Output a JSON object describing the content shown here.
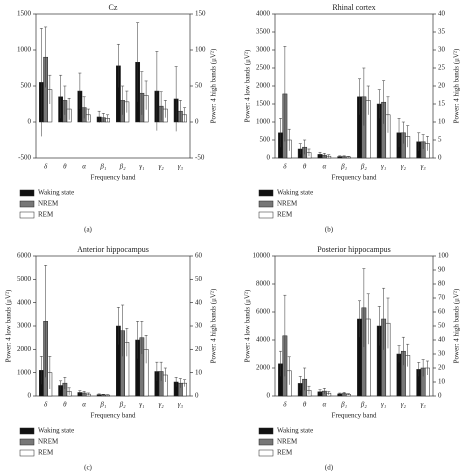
{
  "chart_data": [
    {
      "type": "bar",
      "title": "Cz",
      "caption": "(a)",
      "xlabel": "Frequency band",
      "y2label": "Power: 4 high bands (μV²)",
      "categories": [
        "δ",
        "θ",
        "α",
        "β₁",
        "β₂",
        "γ₁",
        "γ₂",
        "γ₃"
      ],
      "category_axis": [
        "y",
        "y",
        "y",
        "y",
        "y2",
        "y2",
        "y2",
        "y2"
      ],
      "ylim": [
        -500,
        1500
      ],
      "yticks": [
        -500,
        0,
        500,
        1000,
        1500
      ],
      "y2lim": [
        -50,
        150
      ],
      "y2ticks": [
        -50,
        0,
        50,
        100,
        150
      ],
      "series": [
        {
          "name": "Waking state",
          "color": "#111111",
          "values": [
            550,
            350,
            430,
            70,
            78,
            83,
            43,
            32
          ],
          "errors": [
            750,
            300,
            250,
            80,
            30,
            55,
            55,
            45
          ]
        },
        {
          "name": "NREM",
          "color": "#777777",
          "values": [
            900,
            300,
            200,
            60,
            30,
            40,
            22,
            15
          ],
          "errors": [
            420,
            200,
            150,
            60,
            20,
            30,
            20,
            15
          ]
        },
        {
          "name": "REM",
          "color": "#ffffff",
          "values": [
            450,
            180,
            100,
            50,
            28,
            37,
            18,
            10
          ],
          "errors": [
            200,
            150,
            80,
            50,
            15,
            20,
            12,
            10
          ]
        }
      ]
    },
    {
      "type": "bar",
      "title": "Rhinal cortex",
      "caption": "(b)",
      "xlabel": "Frequency band",
      "ylabel": "Power: 4 low bands (μV²)",
      "y2label": "Power: 4 high bands (μV²)",
      "categories": [
        "δ",
        "θ",
        "α",
        "β₁",
        "β₂",
        "γ₁",
        "γ₂",
        "γ₃"
      ],
      "category_axis": [
        "y",
        "y",
        "y",
        "y",
        "y2",
        "y2",
        "y2",
        "y2"
      ],
      "ylim": [
        0,
        4000
      ],
      "yticks": [
        0,
        500,
        1000,
        1500,
        2000,
        2500,
        3000,
        3500,
        4000
      ],
      "y2lim": [
        0,
        40
      ],
      "y2ticks": [
        0,
        5,
        10,
        15,
        20,
        25,
        30,
        35,
        40
      ],
      "series": [
        {
          "name": "Waking state",
          "color": "#111111",
          "values": [
            700,
            250,
            100,
            40,
            17,
            15,
            7,
            4.5
          ],
          "errors": [
            400,
            150,
            60,
            20,
            5,
            4,
            4,
            2.5
          ]
        },
        {
          "name": "NREM",
          "color": "#777777",
          "values": [
            1780,
            300,
            80,
            40,
            17,
            15.5,
            7,
            4.5
          ],
          "errors": [
            1320,
            200,
            50,
            20,
            8,
            6,
            3,
            2
          ]
        },
        {
          "name": "REM",
          "color": "#ffffff",
          "values": [
            500,
            150,
            50,
            30,
            16,
            12,
            6,
            4
          ],
          "errors": [
            300,
            100,
            40,
            15,
            4,
            5,
            3,
            2
          ]
        }
      ]
    },
    {
      "type": "bar",
      "title": "Anterior hippocampus",
      "caption": "(c)",
      "xlabel": "Frequency band",
      "ylabel": "Power: 4 low bands (μV²)",
      "y2label": "Power: 4 high bands (μV²)",
      "categories": [
        "δ",
        "θ",
        "α",
        "β₁",
        "β₂",
        "γ₁",
        "γ₂",
        "γ₃"
      ],
      "category_axis": [
        "y",
        "y",
        "y",
        "y",
        "y2",
        "y2",
        "y2",
        "y2"
      ],
      "ylim": [
        0,
        6000
      ],
      "yticks": [
        0,
        1000,
        2000,
        3000,
        4000,
        5000,
        6000
      ],
      "y2lim": [
        0,
        60
      ],
      "y2ticks": [
        0,
        10,
        20,
        30,
        40,
        50,
        60
      ],
      "series": [
        {
          "name": "Waking state",
          "color": "#111111",
          "values": [
            1100,
            450,
            150,
            60,
            30,
            24,
            10.5,
            6
          ],
          "errors": [
            600,
            200,
            80,
            30,
            8,
            8,
            4,
            2
          ]
        },
        {
          "name": "NREM",
          "color": "#777777",
          "values": [
            3200,
            550,
            130,
            50,
            28,
            25,
            10.5,
            5.5
          ],
          "errors": [
            2400,
            250,
            70,
            25,
            11,
            7,
            4,
            2
          ]
        },
        {
          "name": "REM",
          "color": "#ffffff",
          "values": [
            1000,
            200,
            80,
            40,
            23,
            20,
            9,
            5.5
          ],
          "errors": [
            700,
            150,
            50,
            20,
            6,
            6,
            3,
            1.5
          ]
        }
      ]
    },
    {
      "type": "bar",
      "title": "Posterior hippocampus",
      "caption": "(d)",
      "xlabel": "Frequency band",
      "ylabel": "Power: 4 low bands (μV²)",
      "y2label": "Power: 4 high bands (μV²)",
      "categories": [
        "δ",
        "θ",
        "α",
        "β₁",
        "β₂",
        "γ₁",
        "γ₂",
        "γ₃"
      ],
      "category_axis": [
        "y",
        "y",
        "y",
        "y",
        "y2",
        "y2",
        "y2",
        "y2"
      ],
      "ylim": [
        0,
        10000
      ],
      "yticks": [
        0,
        2000,
        4000,
        6000,
        8000,
        10000
      ],
      "y2lim": [
        0,
        100
      ],
      "y2ticks": [
        0,
        10,
        20,
        30,
        40,
        50,
        60,
        70,
        80,
        90,
        100
      ],
      "series": [
        {
          "name": "Waking state",
          "color": "#111111",
          "values": [
            2300,
            900,
            300,
            150,
            55,
            50,
            30,
            19
          ],
          "errors": [
            900,
            500,
            150,
            60,
            13,
            14,
            6,
            5
          ]
        },
        {
          "name": "NREM",
          "color": "#777777",
          "values": [
            4300,
            1200,
            350,
            180,
            63,
            55,
            32,
            20
          ],
          "errors": [
            2900,
            800,
            200,
            80,
            28,
            22,
            10,
            6
          ]
        },
        {
          "name": "REM",
          "color": "#ffffff",
          "values": [
            1800,
            400,
            200,
            120,
            55,
            52,
            29,
            20
          ],
          "errors": [
            1000,
            300,
            120,
            50,
            18,
            18,
            8,
            5
          ]
        }
      ]
    }
  ]
}
